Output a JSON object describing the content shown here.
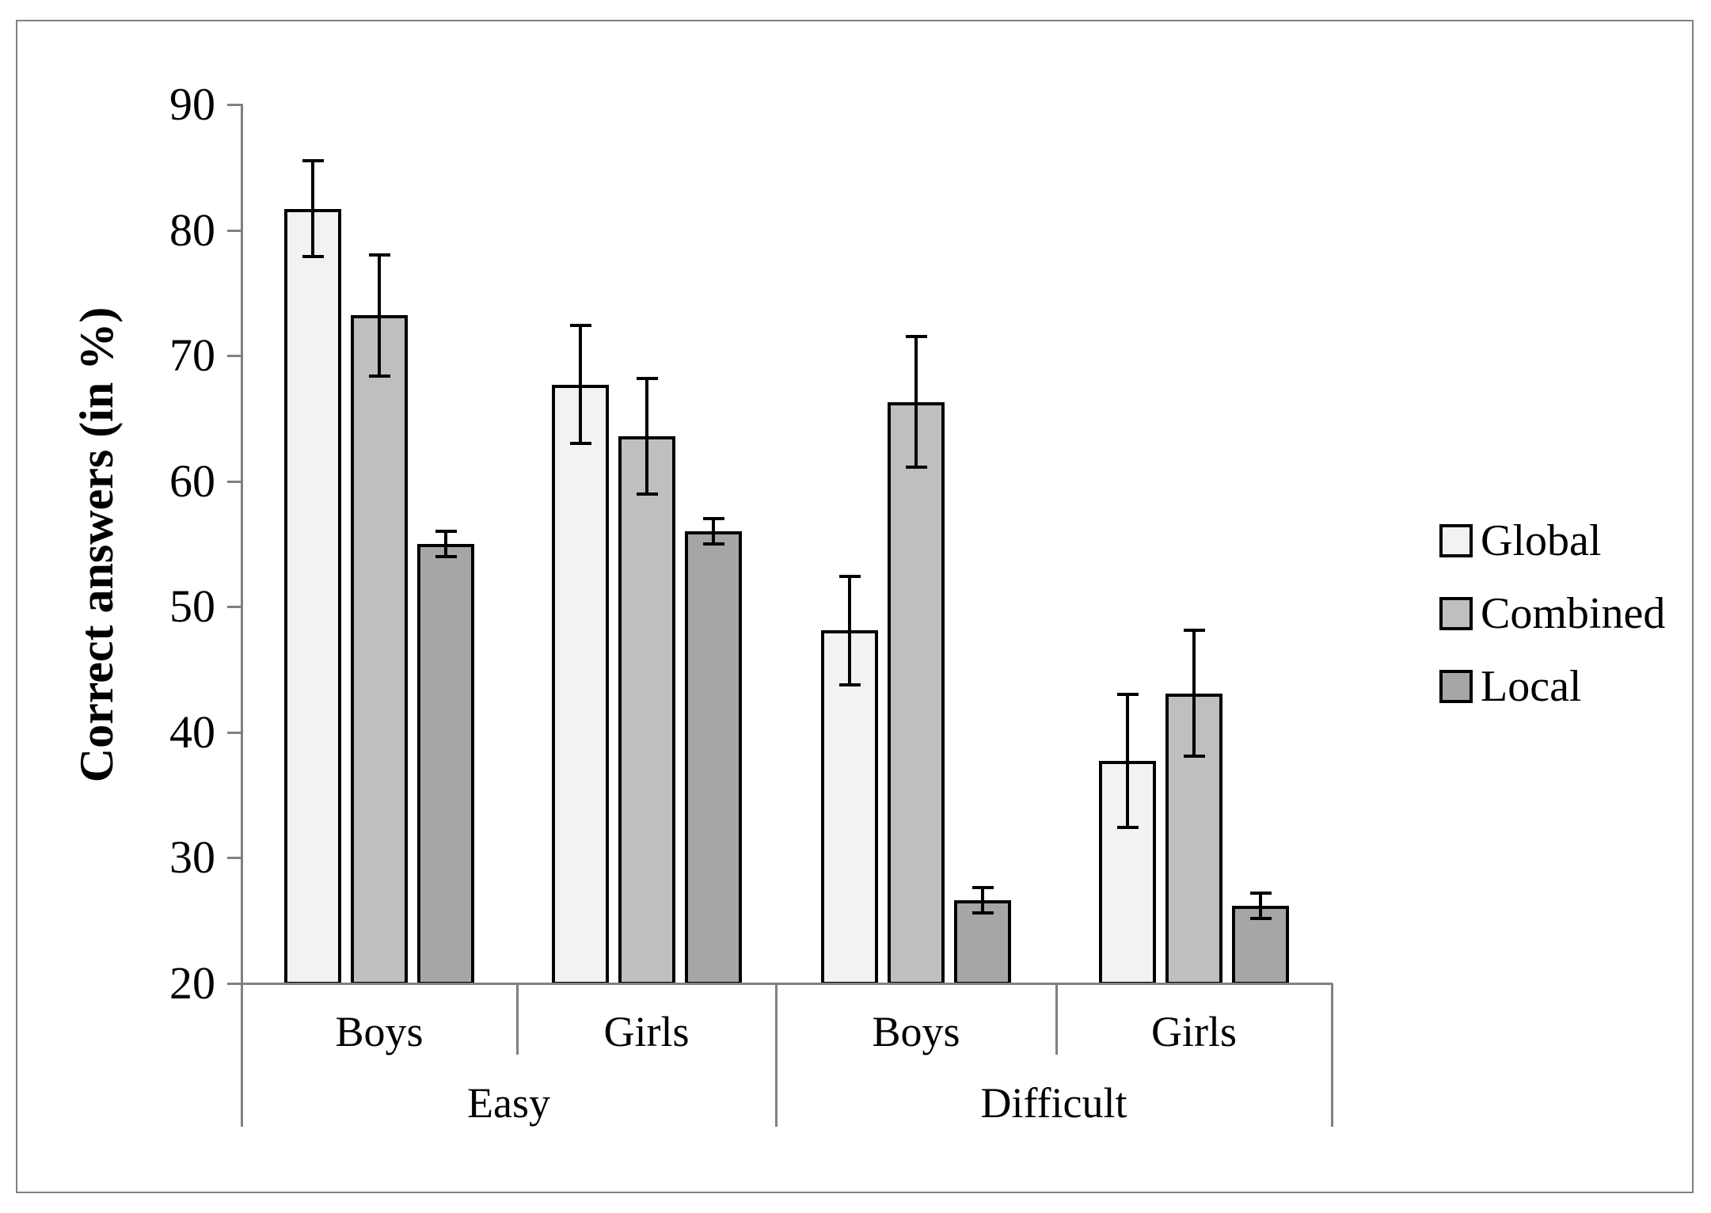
{
  "chart_data": {
    "type": "bar",
    "title": "",
    "ylabel": "Correct answers (in %)",
    "xlabel": "",
    "ylim": [
      20,
      90
    ],
    "yticks": [
      20,
      30,
      40,
      50,
      60,
      70,
      80,
      90
    ],
    "grid": false,
    "legend_position": "right",
    "group_labels": [
      "Boys",
      "Girls",
      "Boys",
      "Girls"
    ],
    "condition_labels": [
      "Easy",
      "Difficult"
    ],
    "series": [
      {
        "name": "Global",
        "color": "#f2f2f2",
        "values": [
          81.7,
          67.7,
          48.1,
          37.7
        ],
        "errors": [
          3.8,
          4.7,
          4.3,
          5.3
        ]
      },
      {
        "name": "Combined",
        "color": "#bfbfbf",
        "values": [
          73.2,
          63.6,
          66.3,
          43.1
        ],
        "errors": [
          4.8,
          4.6,
          5.2,
          5.0
        ]
      },
      {
        "name": "Local",
        "color": "#a6a6a6",
        "values": [
          55.0,
          56.0,
          26.6,
          26.2
        ],
        "errors": [
          1.0,
          1.0,
          1.0,
          1.0
        ]
      }
    ],
    "colors": {
      "axis": "#808080",
      "frame_border": "#808080",
      "bar_border": "#000000",
      "error_bar": "#000000",
      "text": "#000000",
      "background": "#ffffff"
    }
  }
}
